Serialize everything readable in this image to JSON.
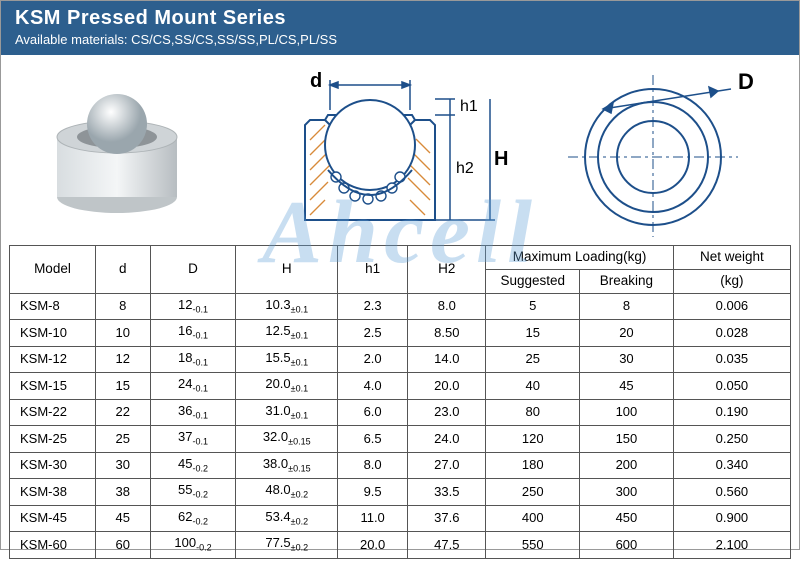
{
  "header": {
    "title": "KSM Pressed Mount Series",
    "subtitle": "Available materials: CS/CS,SS/CS,SS/SS,PL/CS,PL/SS",
    "bg_color": "#2d5f8e",
    "title_color": "#ffffff"
  },
  "watermark": "Ahcell",
  "diagram": {
    "label_d": "d",
    "label_D": "D",
    "label_h1": "h1",
    "label_h2": "h2",
    "label_H": "H",
    "line_color": "#1d4f8a",
    "hatch_color": "#d88a3a",
    "ball_fill": "#e6e6e6"
  },
  "table": {
    "columns_top": [
      "Model",
      "d",
      "D",
      "H",
      "h1",
      "H2",
      "Maximum Loading(kg)",
      "Net weight"
    ],
    "columns_sub": [
      "Suggested",
      "Breaking",
      "(kg)"
    ],
    "col_widths": [
      "11%",
      "7%",
      "11%",
      "13%",
      "9%",
      "10%",
      "12%",
      "12%",
      "15%"
    ],
    "border_color": "#555555",
    "rows": [
      {
        "model": "KSM-8",
        "d": "8",
        "D": "12",
        "D_tol": "-0.1",
        "H": "10.3",
        "H_tol": "±0.1",
        "h1": "2.3",
        "H2": "8.0",
        "sug": "5",
        "brk": "8",
        "wt": "0.006"
      },
      {
        "model": "KSM-10",
        "d": "10",
        "D": "16",
        "D_tol": "-0.1",
        "H": "12.5",
        "H_tol": "±0.1",
        "h1": "2.5",
        "H2": "8.50",
        "sug": "15",
        "brk": "20",
        "wt": "0.028"
      },
      {
        "model": "KSM-12",
        "d": "12",
        "D": "18",
        "D_tol": "-0.1",
        "H": "15.5",
        "H_tol": "±0.1",
        "h1": "2.0",
        "H2": "14.0",
        "sug": "25",
        "brk": "30",
        "wt": "0.035"
      },
      {
        "model": "KSM-15",
        "d": "15",
        "D": "24",
        "D_tol": "-0.1",
        "H": "20.0",
        "H_tol": "±0.1",
        "h1": "4.0",
        "H2": "20.0",
        "sug": "40",
        "brk": "45",
        "wt": "0.050"
      },
      {
        "model": "KSM-22",
        "d": "22",
        "D": "36",
        "D_tol": "-0.1",
        "H": "31.0",
        "H_tol": "±0.1",
        "h1": "6.0",
        "H2": "23.0",
        "sug": "80",
        "brk": "100",
        "wt": "0.190"
      },
      {
        "model": "KSM-25",
        "d": "25",
        "D": "37",
        "D_tol": "-0.1",
        "H": "32.0",
        "H_tol": "±0.15",
        "h1": "6.5",
        "H2": "24.0",
        "sug": "120",
        "brk": "150",
        "wt": "0.250"
      },
      {
        "model": "KSM-30",
        "d": "30",
        "D": "45",
        "D_tol": "-0.2",
        "H": "38.0",
        "H_tol": "±0.15",
        "h1": "8.0",
        "H2": "27.0",
        "sug": "180",
        "brk": "200",
        "wt": "0.340"
      },
      {
        "model": "KSM-38",
        "d": "38",
        "D": "55",
        "D_tol": "-0.2",
        "H": "48.0",
        "H_tol": "±0.2",
        "h1": "9.5",
        "H2": "33.5",
        "sug": "250",
        "brk": "300",
        "wt": "0.560"
      },
      {
        "model": "KSM-45",
        "d": "45",
        "D": "62",
        "D_tol": "-0.2",
        "H": "53.4",
        "H_tol": "±0.2",
        "h1": "11.0",
        "H2": "37.6",
        "sug": "400",
        "brk": "450",
        "wt": "0.900"
      },
      {
        "model": "KSM-60",
        "d": "60",
        "D": "100",
        "D_tol": "-0.2",
        "H": "77.5",
        "H_tol": "±0.2",
        "h1": "20.0",
        "H2": "47.5",
        "sug": "550",
        "brk": "600",
        "wt": "2.100"
      }
    ]
  }
}
